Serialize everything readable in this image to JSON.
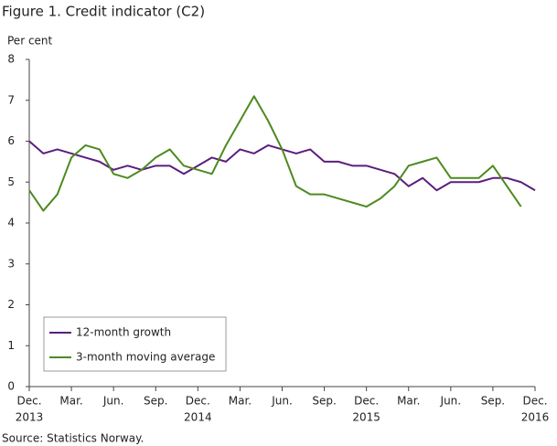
{
  "chart_data": {
    "type": "line",
    "title": "Figure 1. Credit indicator (C2)",
    "y_label": "Per cent",
    "source": "Source: Statistics Norway.",
    "categories": [
      "Dec.",
      null,
      null,
      "Mar.",
      null,
      null,
      "Jun.",
      null,
      null,
      "Sep.",
      null,
      null,
      "Dec.",
      null,
      null,
      "Mar.",
      null,
      null,
      "Jun.",
      null,
      null,
      "Sep.",
      null,
      null,
      "Dec.",
      null,
      null,
      "Mar.",
      null,
      null,
      "Jun.",
      null,
      null,
      "Sep.",
      null,
      null,
      "Dec."
    ],
    "x_year_labels": [
      "2013",
      null,
      null,
      null,
      null,
      null,
      null,
      null,
      null,
      null,
      null,
      null,
      "2014",
      null,
      null,
      null,
      null,
      null,
      null,
      null,
      null,
      null,
      null,
      null,
      "2015",
      null,
      null,
      null,
      null,
      null,
      null,
      null,
      null,
      null,
      null,
      null,
      "2016"
    ],
    "ylim": [
      0,
      8
    ],
    "yticks": [
      0,
      1,
      2,
      3,
      4,
      5,
      6,
      7,
      8
    ],
    "legend": "lower left",
    "series": [
      {
        "name": "12-month growth",
        "color": "#5b1e7d",
        "values": [
          6.0,
          5.7,
          5.8,
          5.7,
          5.6,
          5.5,
          5.3,
          5.4,
          5.3,
          5.4,
          5.4,
          5.2,
          5.4,
          5.6,
          5.5,
          5.8,
          5.7,
          5.9,
          5.8,
          5.7,
          5.8,
          5.5,
          5.5,
          5.4,
          5.4,
          5.3,
          5.2,
          4.9,
          5.1,
          4.8,
          5.0,
          5.0,
          5.0,
          5.1,
          5.1,
          5.0,
          4.8
        ]
      },
      {
        "name": "3-month moving average",
        "color": "#4e8a1f",
        "values": [
          4.8,
          4.3,
          4.7,
          5.6,
          5.9,
          5.8,
          5.2,
          5.1,
          5.3,
          5.6,
          5.8,
          5.4,
          5.3,
          5.2,
          5.9,
          6.5,
          7.1,
          6.5,
          5.8,
          4.9,
          4.7,
          4.7,
          4.6,
          4.5,
          4.4,
          4.6,
          4.9,
          5.4,
          5.5,
          5.6,
          5.1,
          5.1,
          5.1,
          5.4,
          4.9,
          4.4,
          null
        ]
      }
    ]
  }
}
